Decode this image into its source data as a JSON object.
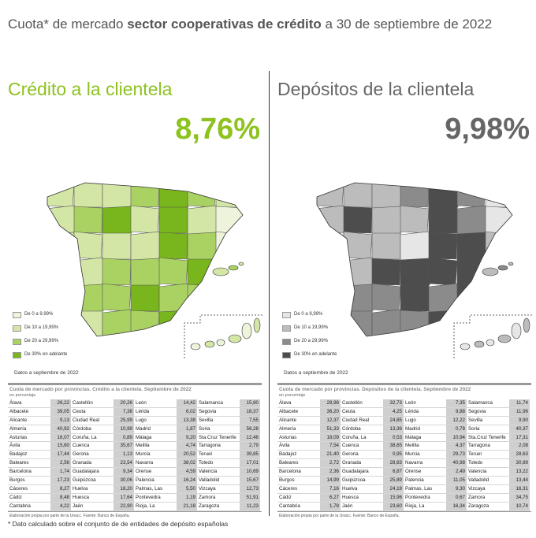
{
  "header": {
    "title_parts": [
      "Cuota* de mercado ",
      "sector cooperativas de crédito",
      " a 30 de septiembre de 2022"
    ]
  },
  "panels": [
    {
      "heading": "Crédito a la clientela",
      "share": "8,76%",
      "legend": [
        "De 0 a 9,99%",
        "De 10 a 19,99%",
        "De 20 a 29,99%",
        "De 30% en adelante"
      ],
      "date_note": "Datos a septiembre de 2022",
      "table": {
        "title": "Cuota de mercado por provincias. Crédito a la clientela. Septiembre de 2022",
        "unit": "en porcentaje",
        "rows": [
          [
            "Álava",
            "26,22",
            "Castellón",
            "20,26",
            "León",
            "14,42",
            "Salamanca",
            "15,80"
          ],
          [
            "Albacete",
            "39,05",
            "Ceuta",
            "7,38",
            "Lérida",
            "6,02",
            "Segovia",
            "18,37"
          ],
          [
            "Alicante",
            "9,13",
            "Ciudad Real",
            "25,99",
            "Lugo",
            "13,38",
            "Sevilla",
            "7,55"
          ],
          [
            "Almería",
            "40,92",
            "Córdoba",
            "10,99",
            "Madrid",
            "1,87",
            "Soria",
            "56,28"
          ],
          [
            "Asturias",
            "16,07",
            "Coruña, La",
            "0,89",
            "Málaga",
            "9,20",
            "Sta.Cruz Tenerife",
            "12,46"
          ],
          [
            "Ávila",
            "15,60",
            "Cuenca",
            "35,67",
            "Melilla",
            "4,74",
            "Tarragona",
            "2,79"
          ],
          [
            "Badajoz",
            "17,44",
            "Gerona",
            "1,13",
            "Murcia",
            "20,52",
            "Teruel",
            "39,85"
          ],
          [
            "Baleares",
            "2,56",
            "Granada",
            "23,54",
            "Navarra",
            "38,02",
            "Toledo",
            "17,01"
          ],
          [
            "Barcelona",
            "1,74",
            "Guadalajara",
            "9,34",
            "Orense",
            "4,59",
            "Valencia",
            "10,69"
          ],
          [
            "Burgos",
            "17,23",
            "Guipúzcoa",
            "30,06",
            "Palencia",
            "16,24",
            "Valladolid",
            "15,67"
          ],
          [
            "Cáceres",
            "8,27",
            "Huelva",
            "18,20",
            "Palmas, Las",
            "5,50",
            "Vizcaya",
            "12,73"
          ],
          [
            "Cádiz",
            "8,48",
            "Huesca",
            "17,64",
            "Pontevedra",
            "1,19",
            "Zamora",
            "51,91"
          ],
          [
            "Cantabria",
            "4,22",
            "Jaén",
            "22,90",
            "Rioja, La",
            "21,18",
            "Zaragoza",
            "11,23"
          ]
        ],
        "source": "Elaboración propia por parte de la Unacc.  Fuente: Banco de España."
      }
    },
    {
      "heading": "Depósitos de la clientela",
      "share": "9,98%",
      "legend": [
        "De 0 a 9,99%",
        "De 10 a 19,99%",
        "De 20 a 29,99%",
        "De 30% en adelante"
      ],
      "date_note": "Datos a septiembre de 2022",
      "table": {
        "title": "Cuota de mercado por provincias. Depósitos de la clientela. Septiembre de 2022",
        "unit": "en porcentaje",
        "rows": [
          [
            "Álava",
            "28,98",
            "Castellón",
            "32,73",
            "León",
            "7,35",
            "Salamanca",
            "11,74"
          ],
          [
            "Albacete",
            "36,20",
            "Ceuta",
            "4,25",
            "Lérida",
            "9,88",
            "Segovia",
            "11,96"
          ],
          [
            "Alicante",
            "12,37",
            "Ciudad Real",
            "24,85",
            "Lugo",
            "12,22",
            "Sevilla",
            "9,90"
          ],
          [
            "Almería",
            "51,33",
            "Córdoba",
            "13,36",
            "Madrid",
            "0,78",
            "Soria",
            "40,37"
          ],
          [
            "Asturias",
            "18,09",
            "Coruña, La",
            "0,53",
            "Málaga",
            "10,94",
            "Sta.Cruz Tenerife",
            "17,31"
          ],
          [
            "Ávila",
            "7,54",
            "Cuenca",
            "38,65",
            "Melilla",
            "4,37",
            "Tarragona",
            "2,08"
          ],
          [
            "Badajoz",
            "21,40",
            "Gerona",
            "0,95",
            "Murcia",
            "29,73",
            "Teruel",
            "28,63"
          ],
          [
            "Baleares",
            "2,72",
            "Granada",
            "28,83",
            "Navarra",
            "40,98",
            "Toledo",
            "30,89"
          ],
          [
            "Barcelona",
            "2,36",
            "Guadalajara",
            "6,87",
            "Orense",
            "2,49",
            "Valencia",
            "13,22"
          ],
          [
            "Burgos",
            "14,99",
            "Guipúzcoa",
            "25,89",
            "Palencia",
            "11,05",
            "Valladolid",
            "13,44"
          ],
          [
            "Cáceres",
            "7,16",
            "Huelva",
            "24,19",
            "Palmas, Las",
            "9,30",
            "Vizcaya",
            "16,31"
          ],
          [
            "Cádiz",
            "6,27",
            "Huesca",
            "15,96",
            "Pontevedra",
            "0,67",
            "Zamora",
            "34,75"
          ],
          [
            "Cantabria",
            "1,78",
            "Jaén",
            "23,60",
            "Rioja, La",
            "16,34",
            "Zaragoza",
            "10,74"
          ]
        ],
        "source": "Elaboración propia por parte de la Unacc.  Fuente: Banco de España."
      }
    }
  ],
  "footnote": "* Dato calculado sobre el conjunto de de entidades de depósito españolas"
}
